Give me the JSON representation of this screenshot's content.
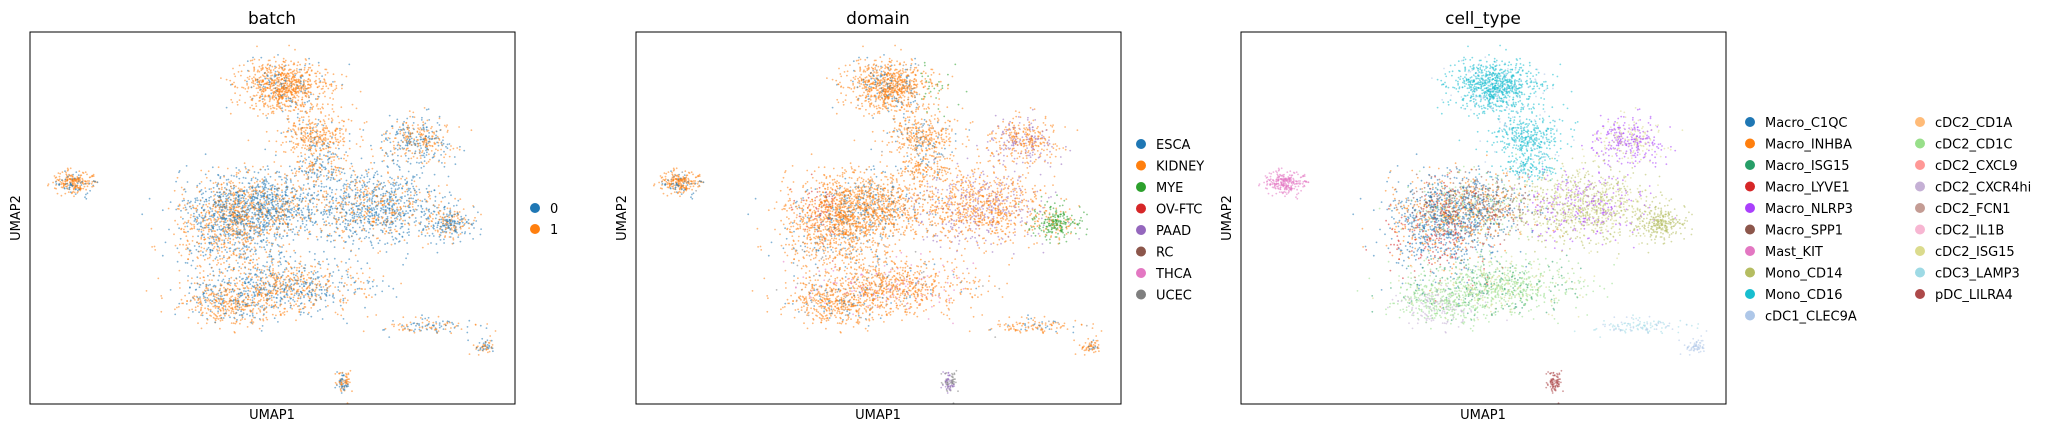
{
  "figure": {
    "background": "#ffffff"
  },
  "chart_data": [
    {
      "type": "scatter",
      "title": "batch",
      "xlabel": "UMAP1",
      "ylabel": "UMAP2",
      "grid": false,
      "legend_placement": "right",
      "legend_entries": [
        {
          "label": "0",
          "color": "#1f77b4"
        },
        {
          "label": "1",
          "color": "#ff7f0e"
        }
      ]
    },
    {
      "type": "scatter",
      "title": "domain",
      "xlabel": "UMAP1",
      "ylabel": "UMAP2",
      "grid": false,
      "legend_placement": "right",
      "legend_entries": [
        {
          "label": "ESCA",
          "color": "#1f77b4"
        },
        {
          "label": "KIDNEY",
          "color": "#ff7f0e"
        },
        {
          "label": "MYE",
          "color": "#2ca02c"
        },
        {
          "label": "OV-FTC",
          "color": "#d62728"
        },
        {
          "label": "PAAD",
          "color": "#9467bd"
        },
        {
          "label": "RC",
          "color": "#8c564b"
        },
        {
          "label": "THCA",
          "color": "#e377c2"
        },
        {
          "label": "UCEC",
          "color": "#7f7f7f"
        }
      ]
    },
    {
      "type": "scatter",
      "title": "cell_type",
      "xlabel": "UMAP1",
      "ylabel": "UMAP2",
      "grid": false,
      "legend_placement": "right",
      "legend_entries": [
        {
          "label": "Macro_C1QC",
          "color": "#1f77b4"
        },
        {
          "label": "Macro_INHBA",
          "color": "#ff7f0e"
        },
        {
          "label": "Macro_ISG15",
          "color": "#279e68"
        },
        {
          "label": "Macro_LYVE1",
          "color": "#d62728"
        },
        {
          "label": "Macro_NLRP3",
          "color": "#aa40fc"
        },
        {
          "label": "Macro_SPP1",
          "color": "#8c564b"
        },
        {
          "label": "Mast_KIT",
          "color": "#e377c2"
        },
        {
          "label": "Mono_CD14",
          "color": "#b5bd61"
        },
        {
          "label": "Mono_CD16",
          "color": "#17becf"
        },
        {
          "label": "cDC1_CLEC9A",
          "color": "#aec7e8"
        },
        {
          "label": "cDC2_CD1A",
          "color": "#ffbb78"
        },
        {
          "label": "cDC2_CD1C",
          "color": "#98df8a"
        },
        {
          "label": "cDC2_CXCL9",
          "color": "#ff9896"
        },
        {
          "label": "cDC2_CXCR4hi",
          "color": "#c5b0d5"
        },
        {
          "label": "cDC2_FCN1",
          "color": "#c49c94"
        },
        {
          "label": "cDC2_IL1B",
          "color": "#f7b6d2"
        },
        {
          "label": "cDC2_ISG15",
          "color": "#dbdb8d"
        },
        {
          "label": "cDC3_LAMP3",
          "color": "#9edae5"
        },
        {
          "label": "pDC_LILRA4",
          "color": "#ad494a"
        }
      ]
    }
  ]
}
